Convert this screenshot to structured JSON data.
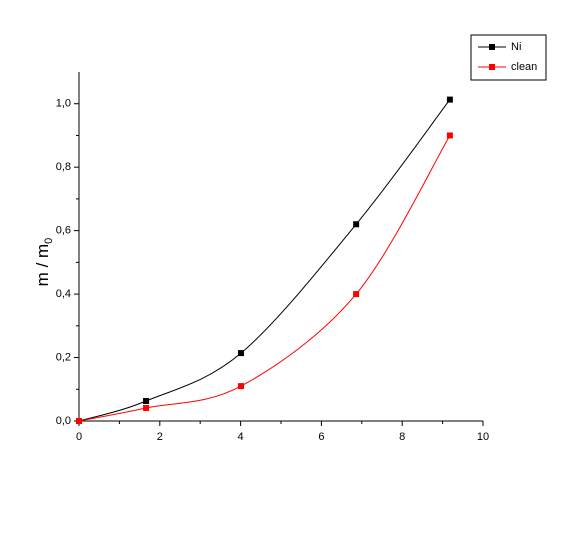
{
  "chart_data": {
    "type": "line",
    "y_label": "m / m",
    "y_label_subscript": "0",
    "series": [
      {
        "name": "Ni",
        "color": "#000000",
        "x": [
          0,
          1.66,
          4.01,
          6.86,
          9.18
        ],
        "values": [
          0,
          0.063,
          0.214,
          0.62,
          1.013
        ]
      },
      {
        "name": "clean",
        "color": "#ff0000",
        "x": [
          0,
          1.66,
          4.01,
          6.86,
          9.18
        ],
        "values": [
          0,
          0.041,
          0.11,
          0.4,
          0.9
        ]
      }
    ],
    "xlim": [
      0,
      10
    ],
    "xticks": [
      0,
      2,
      4,
      6,
      8,
      10
    ],
    "ylim": [
      0,
      1.1
    ],
    "yticks": [
      {
        "value": 0,
        "label": "0,0"
      },
      {
        "value": 0.2,
        "label": "0,2"
      },
      {
        "value": 0.4,
        "label": "0,4"
      },
      {
        "value": 0.6,
        "label": "0,6"
      },
      {
        "value": 0.8,
        "label": "0,8"
      },
      {
        "value": 1.0,
        "label": "1,0"
      }
    ],
    "legend": "top-right",
    "grid": false
  }
}
